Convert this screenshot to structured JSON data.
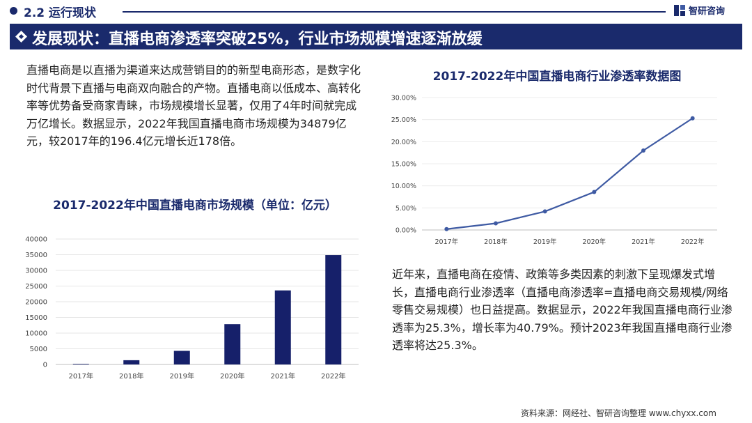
{
  "header": {
    "section_title": "2.2 运行现状",
    "logo_text": "智研咨询",
    "banner_title": "发展现状：直播电商渗透率突破25%，行业市场规模增速逐渐放缓"
  },
  "paragraphs": {
    "left": "直播电商是以直播为渠道来达成营销目的的新型电商形态，是数字化时代背景下直播与电商双向融合的产物。直播电商以低成本、高转化率等优势备受商家青睐，市场规模增长显著，仅用了4年时间就完成万亿增长。数据显示，2022年我国直播电商市场规模为34879亿元，较2017年的196.4亿元增长近178倍。",
    "right": "近年来，直播电商在疫情、政策等多类因素的刺激下呈现爆发式增长，直播电商行业渗透率（直播电商渗透率=直播电商交易规模/网络零售交易规模）也日益提高。数据显示，2022年我国直播电商行业渗透率为25.3%，增长率为40.79%。预计2023年我国直播电商行业渗透率将达25.3%。"
  },
  "source": "资料来源：网经社、智研咨询整理 www.chyxx.com",
  "colors": {
    "brand": "#1a2a6c",
    "bar": "#16206a",
    "line": "#3e5aa3"
  },
  "chart_data": [
    {
      "type": "bar",
      "title": "2017-2022年中国直播电商市场规模（单位：亿元）",
      "categories": [
        "2017年",
        "2018年",
        "2019年",
        "2020年",
        "2021年",
        "2022年"
      ],
      "values": [
        196.4,
        1354,
        4338,
        12850,
        23615,
        34879
      ],
      "ylim": [
        0,
        40000
      ],
      "yticks": [
        0,
        5000,
        10000,
        15000,
        20000,
        25000,
        30000,
        35000,
        40000
      ],
      "ytick_labels": [
        "0",
        "5000",
        "10000",
        "15000",
        "20000",
        "25000",
        "30000",
        "35000",
        "40000"
      ],
      "grid": true,
      "xlabel": "",
      "ylabel": ""
    },
    {
      "type": "line",
      "title": "2017-2022年中国直播电商行业渗透率数据图",
      "categories": [
        "2017年",
        "2018年",
        "2019年",
        "2020年",
        "2021年",
        "2022年"
      ],
      "values": [
        0.2,
        1.5,
        4.2,
        8.6,
        18.0,
        25.3
      ],
      "ylim": [
        0,
        30
      ],
      "yticks": [
        0,
        5,
        10,
        15,
        20,
        25,
        30
      ],
      "ytick_labels": [
        "0.00%",
        "5.00%",
        "10.00%",
        "15.00%",
        "20.00%",
        "25.00%",
        "30.00%"
      ],
      "grid": true,
      "xlabel": "",
      "ylabel": ""
    }
  ]
}
